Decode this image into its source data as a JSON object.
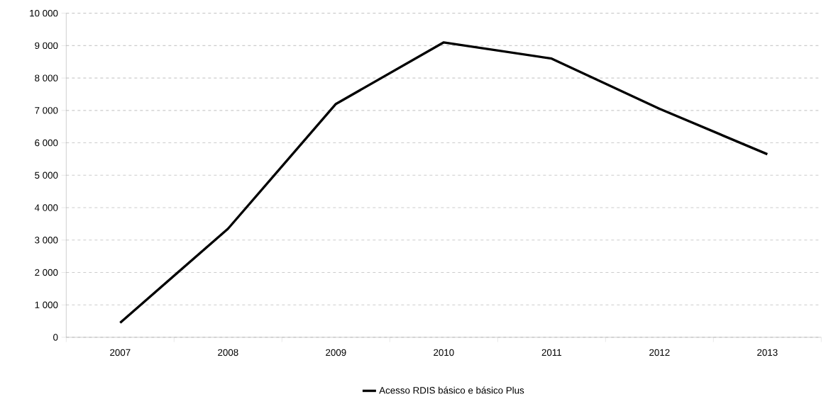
{
  "chart_data": {
    "type": "line",
    "categories": [
      "2007",
      "2008",
      "2009",
      "2010",
      "2011",
      "2012",
      "2013"
    ],
    "series": [
      {
        "name": "Acesso RDIS básico e básico Plus",
        "color": "#000000",
        "values": [
          450,
          3350,
          7200,
          9100,
          8600,
          7050,
          5650
        ]
      }
    ],
    "ylim": [
      0,
      10000
    ],
    "yticks": [
      {
        "value": 0,
        "label": "0"
      },
      {
        "value": 1000,
        "label": "1 000"
      },
      {
        "value": 2000,
        "label": "2 000"
      },
      {
        "value": 3000,
        "label": "3 000"
      },
      {
        "value": 4000,
        "label": "4 000"
      },
      {
        "value": 5000,
        "label": "5 000"
      },
      {
        "value": 6000,
        "label": "6 000"
      },
      {
        "value": 7000,
        "label": "7 000"
      },
      {
        "value": 8000,
        "label": "8 000"
      },
      {
        "value": 9000,
        "label": "9 000"
      },
      {
        "value": 10000,
        "label": "10 000"
      }
    ],
    "grid": "y",
    "legend": "bottom",
    "marker": "none",
    "line_style": "solid"
  }
}
